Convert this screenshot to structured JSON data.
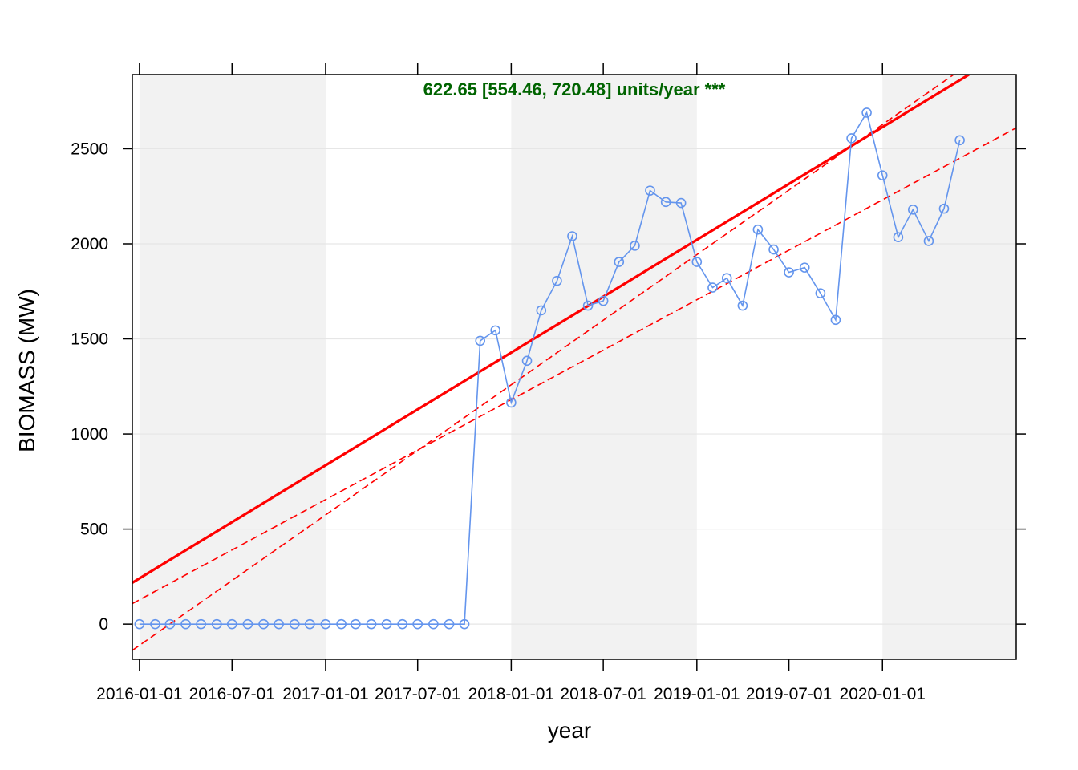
{
  "chart_data": {
    "type": "line",
    "xlabel": "year",
    "ylabel": "BIOMASS (MW)",
    "annotation": "622.65 [554.46, 720.48] units/year ***",
    "xlim": [
      "2015-12-18",
      "2020-09-20"
    ],
    "ylim": [
      -185,
      2890
    ],
    "x_ticks": [
      "2016-01-01",
      "2016-07-01",
      "2017-01-01",
      "2017-07-01",
      "2018-01-01",
      "2018-07-01",
      "2019-01-01",
      "2019-07-01",
      "2020-01-01"
    ],
    "y_ticks": [
      0,
      500,
      1000,
      1500,
      2000,
      2500
    ],
    "grid": true,
    "shaded_years": [
      2016,
      2018,
      2020
    ],
    "colors": {
      "series": "#6495ED",
      "trend": "#FF0000",
      "annotation": "#006400",
      "shade": "#F2F2F2",
      "grid": "#E6E6E6"
    },
    "series": [
      {
        "x": [
          "2016-01-01",
          "2016-02-01",
          "2016-03-01",
          "2016-04-01",
          "2016-05-01",
          "2016-06-01",
          "2016-07-01",
          "2016-08-01",
          "2016-09-01",
          "2016-10-01",
          "2016-11-01",
          "2016-12-01",
          "2017-01-01",
          "2017-02-01",
          "2017-03-01",
          "2017-04-01",
          "2017-05-01",
          "2017-06-01",
          "2017-07-01",
          "2017-08-01",
          "2017-09-01",
          "2017-10-01",
          "2017-11-01",
          "2017-12-01",
          "2018-01-01",
          "2018-02-01",
          "2018-03-01",
          "2018-04-01",
          "2018-05-01",
          "2018-06-01",
          "2018-07-01",
          "2018-08-01",
          "2018-09-01",
          "2018-10-01",
          "2018-11-01",
          "2018-12-01",
          "2019-01-01",
          "2019-02-01",
          "2019-03-01",
          "2019-04-01",
          "2019-05-01",
          "2019-06-01",
          "2019-07-01",
          "2019-08-01",
          "2019-09-01",
          "2019-10-01",
          "2019-11-01",
          "2019-12-01",
          "2020-01-01",
          "2020-02-01",
          "2020-03-01",
          "2020-04-01",
          "2020-05-01",
          "2020-06-01"
        ],
        "values": [
          0,
          0,
          0,
          0,
          0,
          0,
          0,
          0,
          0,
          0,
          0,
          0,
          0,
          0,
          0,
          0,
          0,
          0,
          0,
          0,
          0,
          0,
          1490,
          1545,
          1165,
          1385,
          1650,
          1805,
          2040,
          1675,
          1700,
          1905,
          1990,
          2280,
          2220,
          2215,
          1905,
          1770,
          1820,
          1675,
          2075,
          1970,
          1850,
          1875,
          1740,
          1600,
          2555,
          2690,
          2360,
          2035,
          2180,
          2015,
          2185,
          2545
        ]
      }
    ],
    "trend_lines": [
      {
        "style": "solid",
        "start": [
          "2015-12-18",
          218
        ],
        "end": [
          "2020-06-19",
          2890
        ]
      },
      {
        "style": "dashed",
        "start": [
          "2015-12-18",
          108
        ],
        "end": [
          "2020-09-20",
          2610
        ]
      },
      {
        "style": "dashed",
        "start": [
          "2015-12-18",
          -138
        ],
        "end": [
          "2020-05-20",
          2890
        ]
      }
    ]
  }
}
